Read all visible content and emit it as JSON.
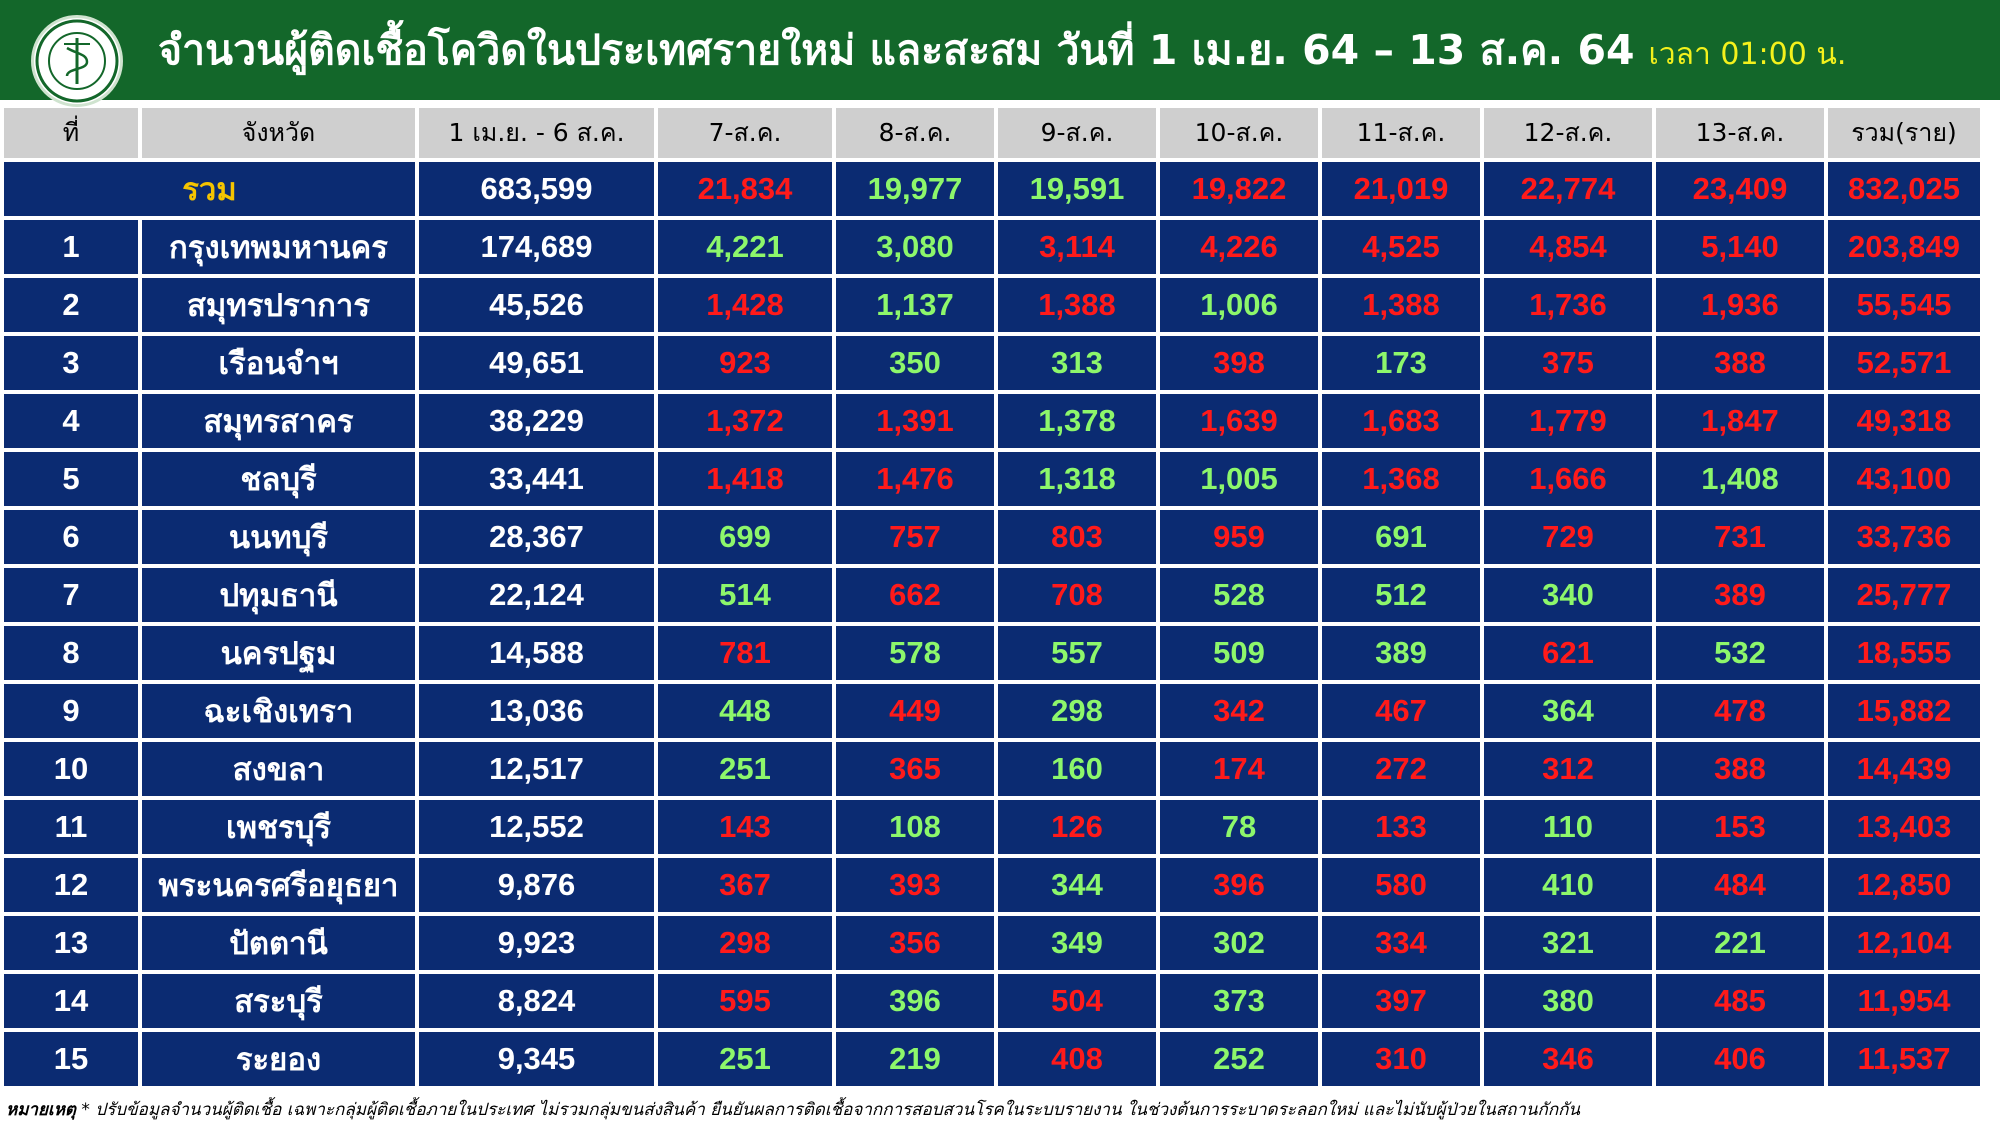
{
  "header": {
    "title": "จำนวนผู้ติดเชื้อโควิดในประเทศรายใหม่ และสะสม วันที่ 1 เม.ย. 64 – 13 ส.ค. 64",
    "time": "เวลา 01:00 น.",
    "logo_icon": "ministry-of-public-health-seal"
  },
  "colors": {
    "header_bg": "#13672a",
    "row_bg": "#0b2b72",
    "increase": "#ff1a1a",
    "decrease": "#8df76b",
    "total_label": "#f5c400"
  },
  "table": {
    "columns": [
      "ที่",
      "จังหวัด",
      "1 เม.ย. - 6 ส.ค.",
      "7-ส.ค.",
      "8-ส.ค.",
      "9-ส.ค.",
      "10-ส.ค.",
      "11-ส.ค.",
      "12-ส.ค.",
      "13-ส.ค.",
      "รวม(ราย)"
    ],
    "total": {
      "label": "รวม",
      "base": "683,599",
      "days": [
        {
          "v": "21,834",
          "c": "red"
        },
        {
          "v": "19,977",
          "c": "green"
        },
        {
          "v": "19,591",
          "c": "green"
        },
        {
          "v": "19,822",
          "c": "red"
        },
        {
          "v": "21,019",
          "c": "red"
        },
        {
          "v": "22,774",
          "c": "red"
        },
        {
          "v": "23,409",
          "c": "red"
        }
      ],
      "sum": "832,025"
    },
    "rows": [
      {
        "no": "1",
        "province": "กรุงเทพมหานคร",
        "base": "174,689",
        "sum": "203,849",
        "days": [
          {
            "v": "4,221",
            "c": "green"
          },
          {
            "v": "3,080",
            "c": "green"
          },
          {
            "v": "3,114",
            "c": "red"
          },
          {
            "v": "4,226",
            "c": "red"
          },
          {
            "v": "4,525",
            "c": "red"
          },
          {
            "v": "4,854",
            "c": "red"
          },
          {
            "v": "5,140",
            "c": "red"
          }
        ]
      },
      {
        "no": "2",
        "province": "สมุทรปราการ",
        "base": "45,526",
        "sum": "55,545",
        "days": [
          {
            "v": "1,428",
            "c": "red"
          },
          {
            "v": "1,137",
            "c": "green"
          },
          {
            "v": "1,388",
            "c": "red"
          },
          {
            "v": "1,006",
            "c": "green"
          },
          {
            "v": "1,388",
            "c": "red"
          },
          {
            "v": "1,736",
            "c": "red"
          },
          {
            "v": "1,936",
            "c": "red"
          }
        ]
      },
      {
        "no": "3",
        "province": "เรือนจำฯ",
        "base": "49,651",
        "sum": "52,571",
        "days": [
          {
            "v": "923",
            "c": "red"
          },
          {
            "v": "350",
            "c": "green"
          },
          {
            "v": "313",
            "c": "green"
          },
          {
            "v": "398",
            "c": "red"
          },
          {
            "v": "173",
            "c": "green"
          },
          {
            "v": "375",
            "c": "red"
          },
          {
            "v": "388",
            "c": "red"
          }
        ]
      },
      {
        "no": "4",
        "province": "สมุทรสาคร",
        "base": "38,229",
        "sum": "49,318",
        "days": [
          {
            "v": "1,372",
            "c": "red"
          },
          {
            "v": "1,391",
            "c": "red"
          },
          {
            "v": "1,378",
            "c": "green"
          },
          {
            "v": "1,639",
            "c": "red"
          },
          {
            "v": "1,683",
            "c": "red"
          },
          {
            "v": "1,779",
            "c": "red"
          },
          {
            "v": "1,847",
            "c": "red"
          }
        ]
      },
      {
        "no": "5",
        "province": "ชลบุรี",
        "base": "33,441",
        "sum": "43,100",
        "days": [
          {
            "v": "1,418",
            "c": "red"
          },
          {
            "v": "1,476",
            "c": "red"
          },
          {
            "v": "1,318",
            "c": "green"
          },
          {
            "v": "1,005",
            "c": "green"
          },
          {
            "v": "1,368",
            "c": "red"
          },
          {
            "v": "1,666",
            "c": "red"
          },
          {
            "v": "1,408",
            "c": "green"
          }
        ]
      },
      {
        "no": "6",
        "province": "นนทบุรี",
        "base": "28,367",
        "sum": "33,736",
        "days": [
          {
            "v": "699",
            "c": "green"
          },
          {
            "v": "757",
            "c": "red"
          },
          {
            "v": "803",
            "c": "red"
          },
          {
            "v": "959",
            "c": "red"
          },
          {
            "v": "691",
            "c": "green"
          },
          {
            "v": "729",
            "c": "red"
          },
          {
            "v": "731",
            "c": "red"
          }
        ]
      },
      {
        "no": "7",
        "province": "ปทุมธานี",
        "base": "22,124",
        "sum": "25,777",
        "days": [
          {
            "v": "514",
            "c": "green"
          },
          {
            "v": "662",
            "c": "red"
          },
          {
            "v": "708",
            "c": "red"
          },
          {
            "v": "528",
            "c": "green"
          },
          {
            "v": "512",
            "c": "green"
          },
          {
            "v": "340",
            "c": "green"
          },
          {
            "v": "389",
            "c": "red"
          }
        ]
      },
      {
        "no": "8",
        "province": "นครปฐม",
        "base": "14,588",
        "sum": "18,555",
        "days": [
          {
            "v": "781",
            "c": "red"
          },
          {
            "v": "578",
            "c": "green"
          },
          {
            "v": "557",
            "c": "green"
          },
          {
            "v": "509",
            "c": "green"
          },
          {
            "v": "389",
            "c": "green"
          },
          {
            "v": "621",
            "c": "red"
          },
          {
            "v": "532",
            "c": "green"
          }
        ]
      },
      {
        "no": "9",
        "province": "ฉะเชิงเทรา",
        "base": "13,036",
        "sum": "15,882",
        "days": [
          {
            "v": "448",
            "c": "green"
          },
          {
            "v": "449",
            "c": "red"
          },
          {
            "v": "298",
            "c": "green"
          },
          {
            "v": "342",
            "c": "red"
          },
          {
            "v": "467",
            "c": "red"
          },
          {
            "v": "364",
            "c": "green"
          },
          {
            "v": "478",
            "c": "red"
          }
        ]
      },
      {
        "no": "10",
        "province": "สงขลา",
        "base": "12,517",
        "sum": "14,439",
        "days": [
          {
            "v": "251",
            "c": "green"
          },
          {
            "v": "365",
            "c": "red"
          },
          {
            "v": "160",
            "c": "green"
          },
          {
            "v": "174",
            "c": "red"
          },
          {
            "v": "272",
            "c": "red"
          },
          {
            "v": "312",
            "c": "red"
          },
          {
            "v": "388",
            "c": "red"
          }
        ]
      },
      {
        "no": "11",
        "province": "เพชรบุรี",
        "base": "12,552",
        "sum": "13,403",
        "days": [
          {
            "v": "143",
            "c": "red"
          },
          {
            "v": "108",
            "c": "green"
          },
          {
            "v": "126",
            "c": "red"
          },
          {
            "v": "78",
            "c": "green"
          },
          {
            "v": "133",
            "c": "red"
          },
          {
            "v": "110",
            "c": "green"
          },
          {
            "v": "153",
            "c": "red"
          }
        ]
      },
      {
        "no": "12",
        "province": "พระนครศรีอยุธยา",
        "base": "9,876",
        "sum": "12,850",
        "days": [
          {
            "v": "367",
            "c": "red"
          },
          {
            "v": "393",
            "c": "red"
          },
          {
            "v": "344",
            "c": "green"
          },
          {
            "v": "396",
            "c": "red"
          },
          {
            "v": "580",
            "c": "red"
          },
          {
            "v": "410",
            "c": "green"
          },
          {
            "v": "484",
            "c": "red"
          }
        ]
      },
      {
        "no": "13",
        "province": "ปัตตานี",
        "base": "9,923",
        "sum": "12,104",
        "days": [
          {
            "v": "298",
            "c": "red"
          },
          {
            "v": "356",
            "c": "red"
          },
          {
            "v": "349",
            "c": "green"
          },
          {
            "v": "302",
            "c": "green"
          },
          {
            "v": "334",
            "c": "red"
          },
          {
            "v": "321",
            "c": "green"
          },
          {
            "v": "221",
            "c": "green"
          }
        ]
      },
      {
        "no": "14",
        "province": "สระบุรี",
        "base": "8,824",
        "sum": "11,954",
        "days": [
          {
            "v": "595",
            "c": "red"
          },
          {
            "v": "396",
            "c": "green"
          },
          {
            "v": "504",
            "c": "red"
          },
          {
            "v": "373",
            "c": "green"
          },
          {
            "v": "397",
            "c": "red"
          },
          {
            "v": "380",
            "c": "green"
          },
          {
            "v": "485",
            "c": "red"
          }
        ]
      },
      {
        "no": "15",
        "province": "ระยอง",
        "base": "9,345",
        "sum": "11,537",
        "days": [
          {
            "v": "251",
            "c": "green"
          },
          {
            "v": "219",
            "c": "green"
          },
          {
            "v": "408",
            "c": "red"
          },
          {
            "v": "252",
            "c": "green"
          },
          {
            "v": "310",
            "c": "red"
          },
          {
            "v": "346",
            "c": "red"
          },
          {
            "v": "406",
            "c": "red"
          }
        ]
      }
    ]
  },
  "footnote": {
    "label": "หมายเหตุ",
    "text": "* ปรับข้อมูลจำนวนผู้ติดเชื้อ เฉพาะกลุ่มผู้ติดเชื้อภายในประเทศ ไม่รวมกลุ่มขนส่งสินค้า ยืนยันผลการติดเชื้อจากการสอบสวนโรคในระบบรายงาน ในช่วงต้นการระบาดระลอกใหม่ และไม่นับผู้ป่วยในสถานกักกัน"
  }
}
